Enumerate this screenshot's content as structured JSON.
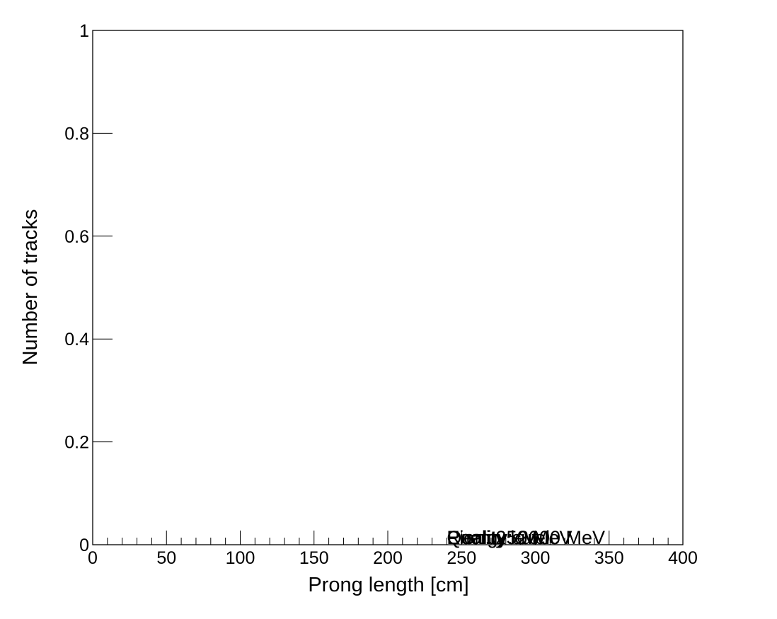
{
  "chart_data": {
    "type": "bar",
    "title": "",
    "xlabel": "Prong length [cm]",
    "ylabel": "Number of tracks",
    "xlim": [
      0,
      400
    ],
    "ylim": [
      0,
      1
    ],
    "x_ticks": [
      "0",
      "50",
      "100",
      "150",
      "200",
      "250",
      "300",
      "350",
      "400"
    ],
    "y_ticks": [
      "0",
      "0.2",
      "0.4",
      "0.6",
      "0.8",
      "1"
    ],
    "x_minor_tick_step": 10,
    "y_minor_ticks": false,
    "grid": false,
    "legend": "none",
    "series": [],
    "annotations": [
      {
        "text": "Pion: 250 MeV",
        "x": 240,
        "y": 0
      },
      {
        "text": "Reality level",
        "x": 240,
        "y": 0
      },
      {
        "text": "Energy: 2000 MeV",
        "x": 240,
        "y": 0
      },
      {
        "text": "Quality cut",
        "x": 240,
        "y": 0
      }
    ]
  }
}
